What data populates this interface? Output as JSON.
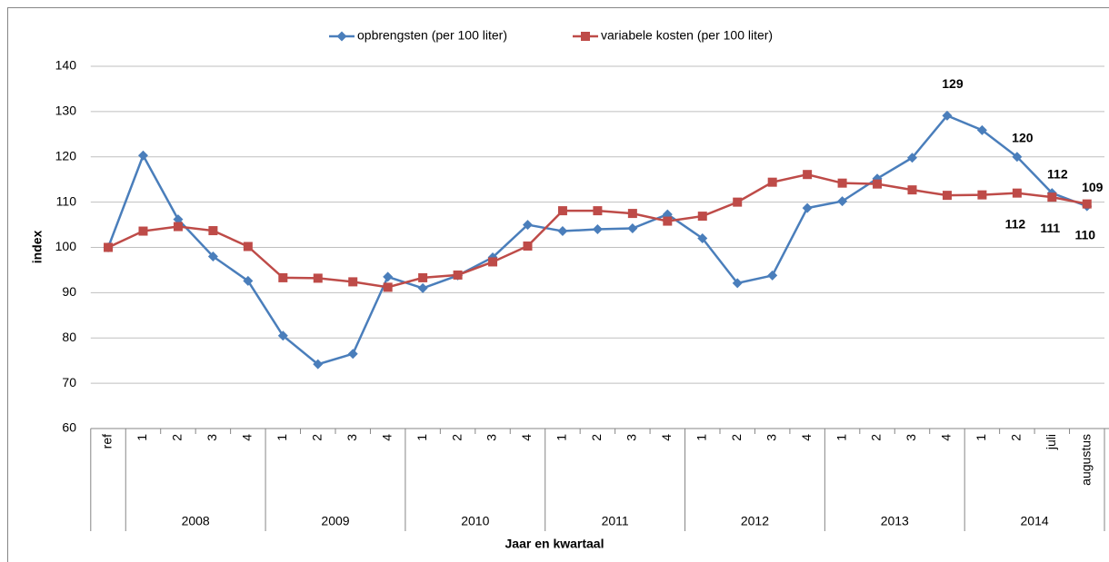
{
  "chart_data": {
    "type": "line",
    "x_label": "Jaar en kwartaal",
    "y_label": "index",
    "categories": [
      "ref",
      "1",
      "2",
      "3",
      "4",
      "1",
      "2",
      "3",
      "4",
      "1",
      "2",
      "3",
      "4",
      "1",
      "2",
      "3",
      "4",
      "1",
      "2",
      "3",
      "4",
      "1",
      "2",
      "3",
      "4",
      "1",
      "2",
      "juli",
      "augustus"
    ],
    "category_groups": [
      null,
      "2008",
      "2008",
      "2008",
      "2008",
      "2009",
      "2009",
      "2009",
      "2009",
      "2010",
      "2010",
      "2010",
      "2010",
      "2011",
      "2011",
      "2011",
      "2011",
      "2012",
      "2012",
      "2012",
      "2012",
      "2013",
      "2013",
      "2013",
      "2013",
      "2014",
      "2014",
      "2014",
      "2014"
    ],
    "series": [
      {
        "name": "opbrengsten (per 100 liter)",
        "color": "#4a7ebb",
        "marker": "diamond",
        "values": [
          100,
          120.3,
          106.2,
          98.0,
          92.6,
          80.5,
          74.2,
          76.5,
          93.5,
          91.0,
          93.8,
          97.8,
          105.0,
          103.6,
          104.0,
          104.2,
          107.3,
          102.0,
          92.1,
          93.8,
          108.7,
          110.2,
          115.2,
          119.8,
          129.1,
          125.9,
          120.0,
          112.0,
          109.1
        ],
        "value_labels": [
          null,
          null,
          null,
          null,
          null,
          null,
          null,
          null,
          null,
          null,
          null,
          null,
          null,
          null,
          null,
          null,
          null,
          null,
          null,
          null,
          null,
          null,
          null,
          null,
          "129",
          null,
          "120",
          "112",
          "109"
        ]
      },
      {
        "name": "variabele kosten (per 100 liter)",
        "color": "#be4b48",
        "marker": "square",
        "values": [
          100,
          103.6,
          104.6,
          103.7,
          100.2,
          93.3,
          93.2,
          92.4,
          91.2,
          93.3,
          93.9,
          96.8,
          100.3,
          108.1,
          108.1,
          107.5,
          105.8,
          106.9,
          110.0,
          114.4,
          116.1,
          114.2,
          114.0,
          112.7,
          111.5,
          111.6,
          112.0,
          111.1,
          109.6
        ],
        "value_labels": [
          null,
          null,
          null,
          null,
          null,
          null,
          null,
          null,
          null,
          null,
          null,
          null,
          null,
          null,
          null,
          null,
          null,
          null,
          null,
          null,
          null,
          null,
          null,
          null,
          null,
          null,
          "112",
          "111",
          "110"
        ]
      }
    ],
    "ylim": [
      60,
      140
    ],
    "yticks": [
      60,
      70,
      80,
      90,
      100,
      110,
      120,
      130,
      140
    ],
    "grid": true,
    "legend": "top"
  }
}
